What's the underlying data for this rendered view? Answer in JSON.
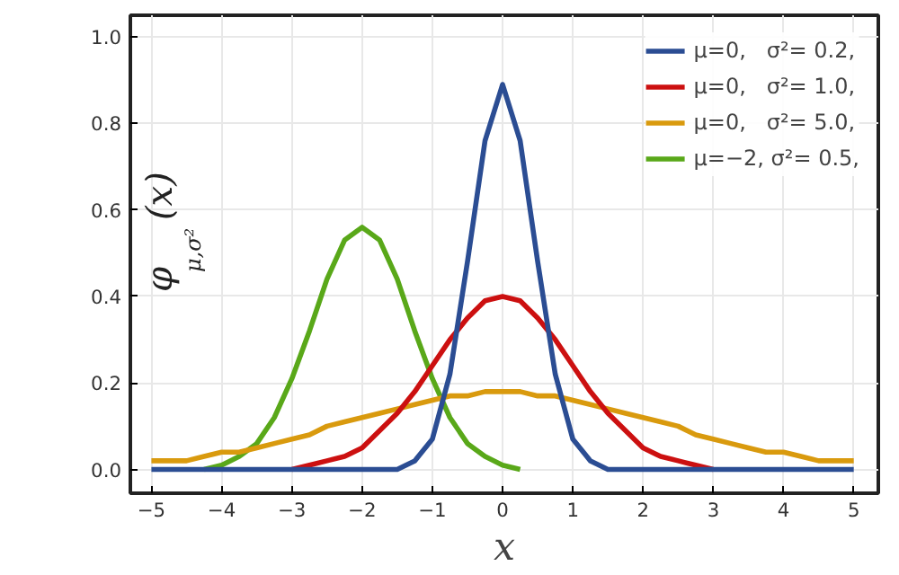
{
  "chart_data": {
    "type": "line",
    "x": [
      -5,
      -4.75,
      -4.5,
      -4.25,
      -4,
      -3.75,
      -3.5,
      -3.25,
      -3,
      -2.75,
      -2.5,
      -2.25,
      -2,
      -1.75,
      -1.5,
      -1.25,
      -1,
      -0.75,
      -0.5,
      -0.25,
      0,
      0.25,
      0.5,
      0.75,
      1,
      1.25,
      1.5,
      1.75,
      2,
      2.25,
      2.5,
      2.75,
      3,
      3.25,
      3.5,
      3.75,
      4,
      4.25,
      4.5,
      4.75,
      5
    ],
    "series": [
      {
        "name": "μ=0,   σ²= 0.2,",
        "color": "#2b4d93",
        "values": [
          0,
          0,
          0,
          0,
          0,
          0,
          0,
          0,
          0,
          0,
          0,
          0,
          0,
          0,
          0,
          0.02,
          0.07,
          0.22,
          0.48,
          0.76,
          0.89,
          0.76,
          0.48,
          0.22,
          0.07,
          0.02,
          0,
          0,
          0,
          0,
          0,
          0,
          0,
          0,
          0,
          0,
          0,
          0,
          0,
          0,
          0
        ]
      },
      {
        "name": "μ=0,   σ²= 1.0,",
        "color": "#cc1010",
        "values": [
          null,
          null,
          null,
          null,
          null,
          null,
          null,
          null,
          0,
          0.01,
          0.02,
          0.03,
          0.05,
          0.09,
          0.13,
          0.18,
          0.24,
          0.3,
          0.35,
          0.39,
          0.4,
          0.39,
          0.35,
          0.3,
          0.24,
          0.18,
          0.13,
          0.09,
          0.05,
          0.03,
          0.02,
          0.01,
          0,
          null,
          null,
          null,
          null,
          null,
          null,
          null,
          null
        ]
      },
      {
        "name": "μ=0,   σ²= 5.0,",
        "color": "#d99a0e",
        "values": [
          0.02,
          0.02,
          0.02,
          0.03,
          0.04,
          0.04,
          0.05,
          0.06,
          0.07,
          0.08,
          0.1,
          0.11,
          0.12,
          0.13,
          0.14,
          0.15,
          0.16,
          0.17,
          0.17,
          0.18,
          0.18,
          0.18,
          0.17,
          0.17,
          0.16,
          0.15,
          0.14,
          0.13,
          0.12,
          0.11,
          0.1,
          0.08,
          0.07,
          0.06,
          0.05,
          0.04,
          0.04,
          0.03,
          0.02,
          0.02,
          0.02
        ]
      },
      {
        "name": "μ=−2, σ²= 0.5,",
        "color": "#59a819",
        "values": [
          null,
          null,
          null,
          0,
          0.01,
          0.03,
          0.06,
          0.12,
          0.21,
          0.32,
          0.44,
          0.53,
          0.56,
          0.53,
          0.44,
          0.32,
          0.21,
          0.12,
          0.06,
          0.03,
          0.01,
          0,
          null,
          null,
          null,
          null,
          null,
          null,
          null,
          null,
          null,
          null,
          null,
          null,
          null,
          null,
          null,
          null,
          null,
          null,
          null
        ]
      }
    ],
    "xlabel": "x",
    "ylabel": "φ$_{μ,σ²}$(x)",
    "xlim": [
      -5.3,
      5.35
    ],
    "ylim": [
      -0.055,
      1.05
    ],
    "xticks": [
      -5,
      -4,
      -3,
      -2,
      -1,
      0,
      1,
      2,
      3,
      4,
      5
    ],
    "yticks": [
      {
        "value": 0,
        "label": "0.0"
      },
      {
        "value": 0.2,
        "label": "0.2"
      },
      {
        "value": 0.4,
        "label": "0.4"
      },
      {
        "value": 0.6,
        "label": "0.6"
      },
      {
        "value": 0.8,
        "label": "0.8"
      },
      {
        "value": 1,
        "label": "1.0"
      }
    ],
    "grid": true,
    "legend": "top right",
    "line_style": "solid",
    "marker": "none"
  }
}
